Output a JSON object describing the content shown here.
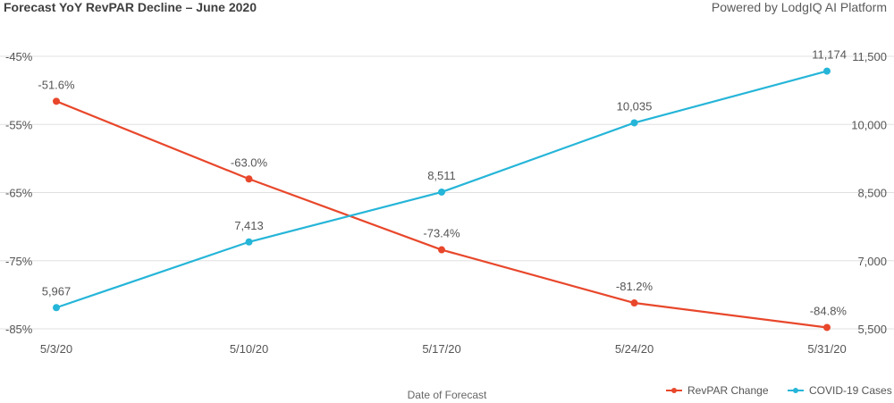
{
  "header": {
    "title": "Forecast YoY RevPAR Decline – June 2020",
    "brand": "Powered by LodgIQ AI Platform"
  },
  "colors": {
    "revpar": "#e8472b",
    "covid": "#25b5d8",
    "grid": "#e0e0e0"
  },
  "chart_data": {
    "type": "line",
    "categories": [
      "5/3/20",
      "5/10/20",
      "5/17/20",
      "5/24/20",
      "5/31/20"
    ],
    "xlabel": "Date of Forecast",
    "y_left": {
      "ticks": [
        "-45%",
        "-55%",
        "-65%",
        "-75%",
        "-85%"
      ],
      "tick_values": [
        -45,
        -55,
        -65,
        -75,
        -85
      ],
      "ylim": [
        -85,
        -45
      ]
    },
    "y_right": {
      "ticks": [
        "11,500",
        "10,000",
        "8,500",
        "7,000",
        "5,500"
      ],
      "tick_values": [
        11500,
        10000,
        8500,
        7000,
        5500
      ],
      "ylim": [
        5500,
        11500
      ]
    },
    "series": [
      {
        "name": "RevPAR Change",
        "axis": "left",
        "color": "#e8472b",
        "values": [
          -51.6,
          -63.0,
          -73.4,
          -81.2,
          -84.8
        ],
        "labels": [
          "-51.6%",
          "-63.0%",
          "-73.4%",
          "-81.2%",
          "-84.8%"
        ]
      },
      {
        "name": "COVID-19 Cases",
        "axis": "right",
        "color": "#25b5d8",
        "values": [
          5967,
          7413,
          8511,
          10035,
          11174
        ],
        "labels": [
          "5,967",
          "7,413",
          "8,511",
          "10,035",
          "11,174"
        ]
      }
    ],
    "legend_position": "bottom-right",
    "grid": true
  }
}
